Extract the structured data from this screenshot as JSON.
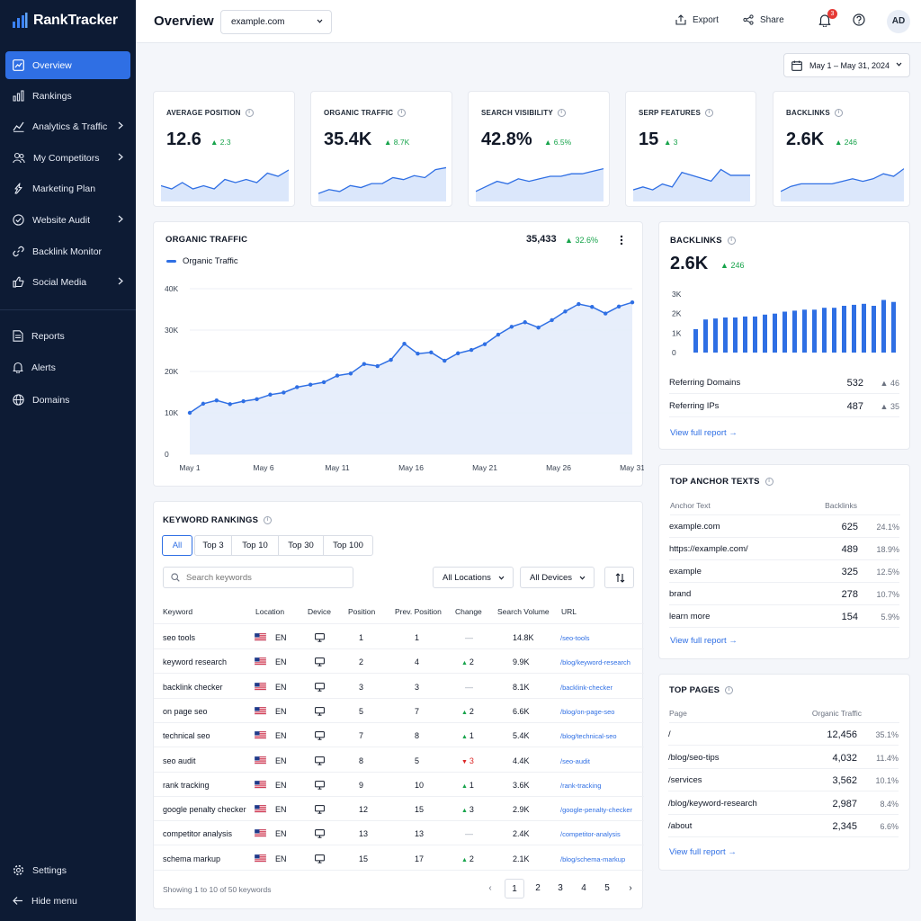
{
  "app": {
    "name": "RankTracker"
  },
  "sidebar": {
    "items": [
      {
        "label": "Overview",
        "icon": "overview-icon",
        "chevron": false
      },
      {
        "label": "Rankings",
        "icon": "rankings-icon",
        "chevron": false
      },
      {
        "label": "Analytics & Traffic",
        "icon": "analytics-icon",
        "chevron": true
      },
      {
        "label": "My Competitors",
        "icon": "competitors-icon",
        "chevron": true
      },
      {
        "label": "Marketing Plan",
        "icon": "marketing-icon",
        "chevron": false
      },
      {
        "label": "Website Audit",
        "icon": "audit-icon",
        "chevron": true
      },
      {
        "label": "Backlink Monitor",
        "icon": "link-icon",
        "chevron": false
      },
      {
        "label": "Social Media",
        "icon": "thumbs-up-icon",
        "chevron": true
      }
    ],
    "secondary": [
      {
        "label": "Reports",
        "icon": "reports-icon"
      },
      {
        "label": "Alerts",
        "icon": "bell-icon"
      },
      {
        "label": "Domains",
        "icon": "globe-icon"
      }
    ],
    "settings": "Settings",
    "hide_menu": "Hide menu"
  },
  "header": {
    "title": "Overview",
    "domain": "example.com",
    "export": "Export",
    "share": "Share",
    "notifications": "3",
    "avatar": "AD"
  },
  "date_range": "May 1 – May 31, 2024",
  "kpis": [
    {
      "label": "AVERAGE POSITION",
      "value": "12.6",
      "delta": "2.3",
      "spark": [
        13,
        12,
        14,
        12,
        13,
        12,
        15,
        14,
        15,
        14,
        17,
        16,
        18
      ]
    },
    {
      "label": "ORGANIC TRAFFIC",
      "value": "35.4K",
      "delta": "8.7K",
      "spark": [
        10,
        12,
        11,
        14,
        13,
        15,
        15,
        18,
        17,
        19,
        18,
        22,
        23
      ]
    },
    {
      "label": "SEARCH VISIBILITY",
      "value": "42.8%",
      "delta": "6.5%",
      "spark": [
        12,
        14,
        16,
        15,
        17,
        16,
        17,
        18,
        18,
        19,
        19,
        20,
        21
      ]
    },
    {
      "label": "SERP FEATURES",
      "value": "15",
      "delta": "3",
      "spark": [
        12,
        13,
        12,
        14,
        13,
        18,
        17,
        16,
        15,
        19,
        17,
        17,
        17
      ]
    },
    {
      "label": "BACKLINKS",
      "value": "2.6K",
      "delta": "246",
      "spark": [
        11,
        13,
        14,
        14,
        14,
        14,
        15,
        16,
        15,
        16,
        18,
        17,
        20
      ]
    }
  ],
  "organic_card": {
    "title": "ORGANIC TRAFFIC",
    "total": "35,433",
    "delta": "32.6%",
    "legend": "Organic Traffic"
  },
  "chart_data": {
    "type": "area",
    "series": [
      {
        "name": "Organic Traffic",
        "values": [
          10000,
          12200,
          13000,
          12100,
          12800,
          13300,
          14400,
          14900,
          16200,
          16800,
          17400,
          19000,
          19500,
          21800,
          21300,
          22800,
          26700,
          24300,
          24600,
          22600,
          24400,
          25200,
          26600,
          28900,
          30800,
          31900,
          30600,
          32400,
          34500,
          36300,
          35600,
          34000,
          35700,
          36700
        ]
      }
    ],
    "x_ticks": [
      "May 1",
      "May 6",
      "May 11",
      "May 16",
      "May 21",
      "May 26",
      "May 31"
    ],
    "y_ticks": [
      "40K",
      "30K",
      "20K",
      "10K",
      "0"
    ],
    "ylim": [
      0,
      40000
    ],
    "grid": true
  },
  "backlinks_card": {
    "title": "BACKLINKS",
    "value": "2.6K",
    "delta": "246",
    "y_ticks": [
      "3K",
      "2K",
      "1K",
      "0"
    ],
    "bars": [
      1200,
      1700,
      1750,
      1800,
      1800,
      1850,
      1850,
      1950,
      2000,
      2100,
      2150,
      2200,
      2200,
      2300,
      2300,
      2400,
      2450,
      2500,
      2400,
      2700,
      2600
    ],
    "rows": [
      {
        "label": "Referring Domains",
        "value": "532",
        "delta": "46"
      },
      {
        "label": "Referring IPs",
        "value": "487",
        "delta": "35"
      }
    ],
    "link": "View full report"
  },
  "anchors": {
    "title": "TOP ANCHOR TEXTS",
    "col1": "Anchor Text",
    "col2": "Backlinks",
    "rows": [
      {
        "text": "example.com",
        "count": "625",
        "pct": "24.1%"
      },
      {
        "text": "https://example.com/",
        "count": "489",
        "pct": "18.9%"
      },
      {
        "text": "example",
        "count": "325",
        "pct": "12.5%"
      },
      {
        "text": "brand",
        "count": "278",
        "pct": "10.7%"
      },
      {
        "text": "learn more",
        "count": "154",
        "pct": "5.9%"
      }
    ],
    "link": "View full report"
  },
  "pages": {
    "title": "TOP PAGES",
    "col1": "Page",
    "col2": "Organic Traffic",
    "rows": [
      {
        "page": "/",
        "traffic": "12,456",
        "pct": "35.1%"
      },
      {
        "page": "/blog/seo-tips",
        "traffic": "4,032",
        "pct": "11.4%"
      },
      {
        "page": "/services",
        "traffic": "3,562",
        "pct": "10.1%"
      },
      {
        "page": "/blog/keyword-research",
        "traffic": "2,987",
        "pct": "8.4%"
      },
      {
        "page": "/about",
        "traffic": "2,345",
        "pct": "6.6%"
      }
    ],
    "link": "View full report"
  },
  "keywords": {
    "title": "KEYWORD RANKINGS",
    "tabs": [
      "All",
      "Top 3",
      "Top 10",
      "Top 30",
      "Top 100"
    ],
    "search_placeholder": "Search keywords",
    "locations": "All Locations",
    "devices": "All Devices",
    "columns": [
      "Keyword",
      "Location",
      "Device",
      "Position",
      "Prev. Position",
      "Change",
      "Search Volume",
      "URL"
    ],
    "rows": [
      {
        "keyword": "seo tools",
        "loc": "EN",
        "pos": "1",
        "prev": "1",
        "change": "—",
        "dir": "none",
        "volume": "14.8K",
        "url": "/seo-tools"
      },
      {
        "keyword": "keyword research",
        "loc": "EN",
        "pos": "2",
        "prev": "4",
        "change": "2",
        "dir": "up",
        "volume": "9.9K",
        "url": "/blog/keyword-research"
      },
      {
        "keyword": "backlink checker",
        "loc": "EN",
        "pos": "3",
        "prev": "3",
        "change": "—",
        "dir": "none",
        "volume": "8.1K",
        "url": "/backlink-checker"
      },
      {
        "keyword": "on page seo",
        "loc": "EN",
        "pos": "5",
        "prev": "7",
        "change": "2",
        "dir": "up",
        "volume": "6.6K",
        "url": "/blog/on-page-seo"
      },
      {
        "keyword": "technical seo",
        "loc": "EN",
        "pos": "7",
        "prev": "8",
        "change": "1",
        "dir": "up",
        "volume": "5.4K",
        "url": "/blog/technical-seo"
      },
      {
        "keyword": "seo audit",
        "loc": "EN",
        "pos": "8",
        "prev": "5",
        "change": "3",
        "dir": "down",
        "volume": "4.4K",
        "url": "/seo-audit"
      },
      {
        "keyword": "rank tracking",
        "loc": "EN",
        "pos": "9",
        "prev": "10",
        "change": "1",
        "dir": "up",
        "volume": "3.6K",
        "url": "/rank-tracking"
      },
      {
        "keyword": "google penalty checker",
        "loc": "EN",
        "pos": "12",
        "prev": "15",
        "change": "3",
        "dir": "up",
        "volume": "2.9K",
        "url": "/google-penalty-checker"
      },
      {
        "keyword": "competitor analysis",
        "loc": "EN",
        "pos": "13",
        "prev": "13",
        "change": "—",
        "dir": "none",
        "volume": "2.4K",
        "url": "/competitor-analysis"
      },
      {
        "keyword": "schema markup",
        "loc": "EN",
        "pos": "15",
        "prev": "17",
        "change": "2",
        "dir": "up",
        "volume": "2.1K",
        "url": "/blog/schema-markup"
      }
    ],
    "footer": "Showing 1 to 10 of 50 keywords",
    "pages": [
      "1",
      "2",
      "3",
      "4",
      "5"
    ]
  },
  "colors": {
    "accent": "#2f6fe4",
    "sidebar": "#0d1b34",
    "positive": "#16a34a",
    "negative": "#dc2626"
  }
}
